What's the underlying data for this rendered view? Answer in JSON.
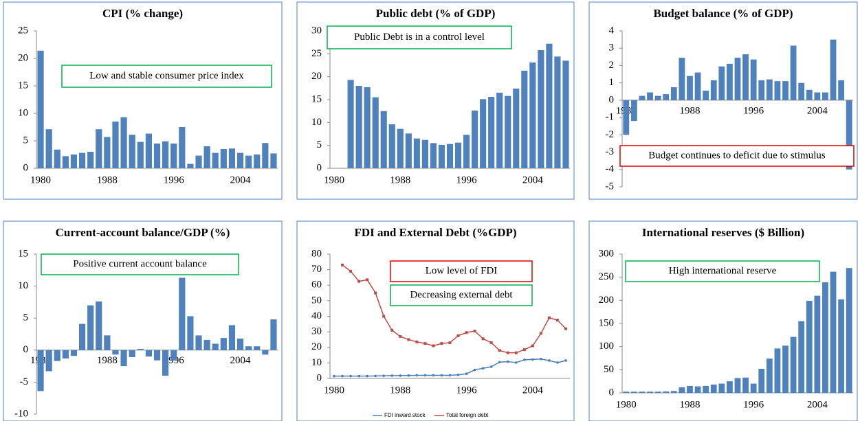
{
  "chart_data": [
    {
      "type": "bar",
      "title": "CPI (% change)",
      "categories": [
        1980,
        null,
        null,
        null,
        null,
        null,
        null,
        null,
        1988,
        null,
        null,
        null,
        null,
        null,
        null,
        null,
        1996,
        null,
        null,
        null,
        null,
        null,
        null,
        null,
        2004,
        null,
        null,
        null,
        null
      ],
      "values": [
        21.4,
        7.1,
        3.4,
        2.2,
        2.5,
        2.8,
        3.0,
        7.1,
        5.7,
        8.5,
        9.3,
        6.1,
        4.8,
        6.3,
        4.5,
        4.9,
        4.5,
        7.5,
        0.8,
        2.3,
        4.0,
        2.8,
        3.5,
        3.6,
        2.8,
        2.3,
        2.5,
        4.6,
        2.7
      ],
      "color": "#4f81bd",
      "ylim": [
        0,
        25
      ],
      "yticks": [
        0,
        5,
        10,
        15,
        20,
        25
      ],
      "annotations": [
        {
          "text": "Low and stable consumer price index",
          "border": "#00b050"
        }
      ]
    },
    {
      "type": "bar",
      "title": "Public debt  (% of GDP)",
      "categories": [
        1980,
        null,
        null,
        null,
        null,
        null,
        null,
        null,
        1988,
        null,
        null,
        null,
        null,
        null,
        null,
        null,
        1996,
        null,
        null,
        null,
        null,
        null,
        null,
        null,
        2004,
        null,
        null,
        null,
        null
      ],
      "values": [
        null,
        null,
        19.3,
        18.0,
        17.7,
        15.5,
        12.5,
        9.6,
        8.6,
        7.6,
        6.5,
        6.2,
        5.5,
        5.1,
        5.3,
        5.6,
        7.3,
        12.6,
        15.1,
        15.6,
        16.5,
        15.8,
        17.4,
        21.3,
        23.1,
        25.8,
        27.2,
        24.4,
        23.5
      ],
      "color": "#4f81bd",
      "ylim": [
        0,
        30
      ],
      "yticks": [
        0,
        5,
        10,
        15,
        20,
        25,
        30
      ],
      "annotations": [
        {
          "text": "Public Debt is in a control level",
          "border": "#00b050"
        }
      ]
    },
    {
      "type": "bar",
      "title": "Budget balance (% of GDP)",
      "categories": [
        1980,
        null,
        null,
        null,
        null,
        null,
        null,
        null,
        1988,
        null,
        null,
        null,
        null,
        null,
        null,
        null,
        1996,
        null,
        null,
        null,
        null,
        null,
        null,
        null,
        2004,
        null,
        null,
        null,
        null
      ],
      "values": [
        -2.0,
        -1.2,
        0.25,
        0.45,
        0.25,
        0.35,
        0.75,
        2.45,
        1.4,
        1.6,
        0.55,
        1.15,
        1.95,
        2.1,
        2.45,
        2.65,
        2.35,
        1.15,
        1.2,
        1.1,
        1.1,
        3.15,
        1.0,
        0.6,
        0.45,
        0.45,
        3.5,
        1.15,
        -4.0
      ],
      "color": "#4f81bd",
      "ylim": [
        -5,
        4
      ],
      "yticks": [
        -5,
        -4,
        -3,
        -2,
        -1,
        0,
        1,
        2,
        3,
        4
      ],
      "annotations": [
        {
          "text": "Budget continues to deficit due to stimulus",
          "border": "#e00000"
        }
      ]
    },
    {
      "type": "bar",
      "title": "Current-account balance/GDP (%)",
      "categories": [
        1980,
        null,
        null,
        null,
        null,
        null,
        null,
        null,
        1988,
        null,
        null,
        null,
        null,
        null,
        null,
        null,
        1996,
        null,
        null,
        null,
        null,
        null,
        null,
        null,
        2004,
        null,
        null,
        null,
        null
      ],
      "values": [
        -6.4,
        -3.3,
        -1.7,
        -1.3,
        -0.9,
        4.1,
        7.0,
        7.6,
        2.3,
        -0.7,
        -2.5,
        -1.1,
        0.2,
        -1.0,
        -1.6,
        -4.0,
        -1.6,
        11.3,
        5.3,
        2.3,
        1.6,
        1.0,
        1.9,
        3.9,
        1.8,
        0.6,
        0.6,
        -0.7,
        4.8
      ],
      "color": "#4f81bd",
      "ylim": [
        -10,
        15
      ],
      "yticks": [
        -10,
        -5,
        0,
        5,
        10,
        15
      ],
      "annotations": [
        {
          "text": "Positive current account balance",
          "border": "#00b050"
        }
      ]
    },
    {
      "type": "line",
      "title": "FDI and External Debt (%GDP)",
      "categories": [
        1980,
        null,
        null,
        null,
        null,
        null,
        null,
        null,
        1988,
        null,
        null,
        null,
        null,
        null,
        null,
        null,
        1996,
        null,
        null,
        null,
        null,
        null,
        null,
        null,
        2004,
        null,
        null,
        null,
        null
      ],
      "series": [
        {
          "name": "FDI inward stock",
          "color": "#4a7ebb",
          "values": [
            1.5,
            1.5,
            1.5,
            1.5,
            1.5,
            1.6,
            1.7,
            1.8,
            1.8,
            1.9,
            2.0,
            2.0,
            2.0,
            2.0,
            2.0,
            2.3,
            3.0,
            5.5,
            6.5,
            7.5,
            10.5,
            10.8,
            10.2,
            12.0,
            12.2,
            12.5,
            11.5,
            10.2,
            11.5
          ]
        },
        {
          "name": "Total foreign debt",
          "color": "#be4b48",
          "values": [
            null,
            73,
            69,
            62.5,
            63.5,
            55,
            40,
            31,
            27,
            25,
            23.5,
            22.5,
            21,
            22.5,
            23,
            27.5,
            29.5,
            30.5,
            25.5,
            23,
            18,
            16.5,
            16.5,
            18.5,
            21,
            29,
            39,
            37.5,
            32
          ]
        }
      ],
      "ylim": [
        0,
        80
      ],
      "yticks": [
        0,
        10,
        20,
        30,
        40,
        50,
        60,
        70,
        80
      ],
      "annotations": [
        {
          "text": "Low level of FDI",
          "border": "#e00000"
        },
        {
          "text": "Decreasing external debt",
          "border": "#00b050"
        }
      ]
    },
    {
      "type": "bar",
      "title": "International reserves ($ Billion)",
      "categories": [
        1980,
        null,
        null,
        null,
        null,
        null,
        null,
        null,
        1988,
        null,
        null,
        null,
        null,
        null,
        null,
        null,
        1996,
        null,
        null,
        null,
        null,
        null,
        null,
        null,
        2004,
        null,
        null,
        null,
        null
      ],
      "values": [
        2.5,
        2.5,
        2.5,
        2.5,
        2.5,
        3,
        4,
        12,
        15,
        14,
        15,
        18,
        20,
        25,
        32,
        33,
        20,
        52,
        74,
        96,
        102,
        121,
        155,
        199,
        210,
        239,
        262,
        202,
        270
      ],
      "color": "#4f81bd",
      "ylim": [
        0,
        300
      ],
      "yticks": [
        0,
        50,
        100,
        150,
        200,
        250,
        300
      ],
      "annotations": [
        {
          "text": "High international reserve",
          "border": "#00b050"
        }
      ]
    }
  ]
}
